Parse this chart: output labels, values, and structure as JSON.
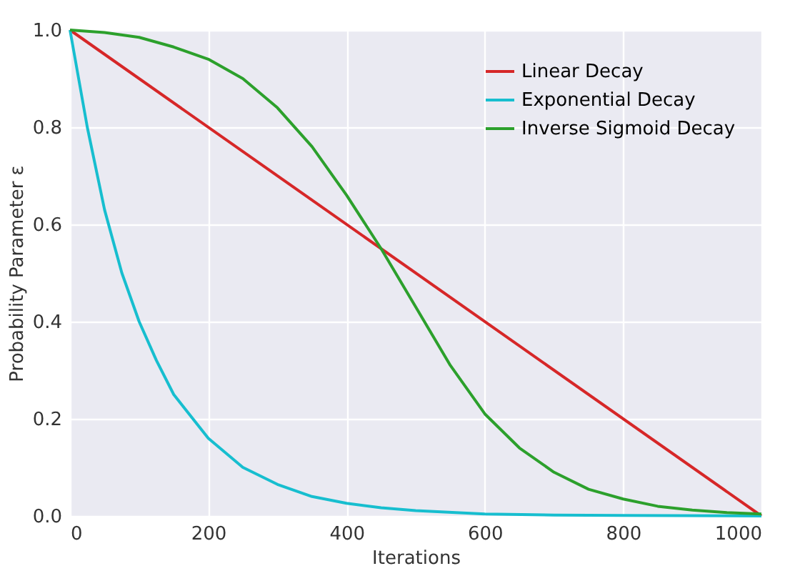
{
  "chart_data": {
    "type": "line",
    "xlabel": "Iterations",
    "ylabel": "Probability Parameter ε",
    "xlim": [
      0,
      1000
    ],
    "xticks": [
      0,
      200,
      400,
      600,
      800,
      1000
    ],
    "ylim": [
      0,
      1
    ],
    "yticks": [
      {
        "value": 0,
        "label": "0.0"
      },
      0.2,
      0.4,
      0.6,
      0.8,
      {
        "value": 1,
        "label": "1.0"
      }
    ],
    "grid": true,
    "legend": "top right",
    "line_style": "solid",
    "marker": "none",
    "series": [
      {
        "name": "Linear Decay",
        "color": "#d62728",
        "x": [
          0,
          1000
        ],
        "values": [
          1,
          0
        ]
      },
      {
        "name": "Exponential Decay",
        "color": "#17becf",
        "x": [
          0,
          25,
          50,
          75,
          100,
          125,
          150,
          200,
          250,
          300,
          350,
          400,
          450,
          500,
          600,
          700,
          800,
          1000
        ],
        "values": [
          1,
          0.8,
          0.63,
          0.5,
          0.4,
          0.32,
          0.25,
          0.16,
          0.1,
          0.065,
          0.04,
          0.026,
          0.017,
          0.011,
          0.004,
          0.002,
          0.001,
          0
        ]
      },
      {
        "name": "Inverse Sigmoid Decay",
        "color": "#2ca02c",
        "x": [
          0,
          50,
          100,
          150,
          200,
          250,
          300,
          350,
          400,
          450,
          500,
          550,
          600,
          650,
          700,
          750,
          800,
          850,
          900,
          950,
          1000
        ],
        "values": [
          1,
          0.995,
          0.985,
          0.965,
          0.94,
          0.9,
          0.84,
          0.76,
          0.66,
          0.55,
          0.43,
          0.31,
          0.21,
          0.14,
          0.09,
          0.055,
          0.035,
          0.02,
          0.012,
          0.007,
          0.004
        ]
      }
    ]
  }
}
